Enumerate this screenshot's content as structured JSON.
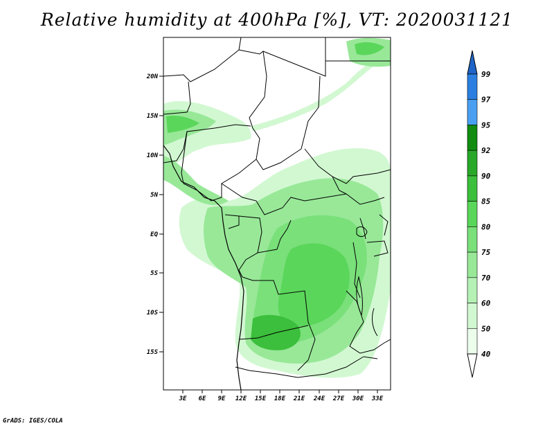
{
  "title": "Relative humidity at 400hPa [%], VT: 2020031121",
  "credit": "GrADS: IGES/COLA",
  "map": {
    "lat_labels": [
      "20N",
      "15N",
      "10N",
      "5N",
      "EQ",
      "5S",
      "10S",
      "15S"
    ],
    "lon_labels": [
      "3E",
      "6E",
      "9E",
      "12E",
      "15E",
      "18E",
      "21E",
      "24E",
      "27E",
      "30E",
      "33E"
    ]
  },
  "colorbar": {
    "levels": [
      "99",
      "97",
      "95",
      "92",
      "90",
      "85",
      "80",
      "75",
      "70",
      "60",
      "50",
      "40"
    ],
    "colors": [
      "#1f64c8",
      "#2c7fe0",
      "#4aa0f0",
      "#118c11",
      "#2aa82a",
      "#3cbf3c",
      "#5ad65a",
      "#7ae07a",
      "#98e898",
      "#b5f0b5",
      "#d2f8d2",
      "#ecfdec"
    ]
  }
}
